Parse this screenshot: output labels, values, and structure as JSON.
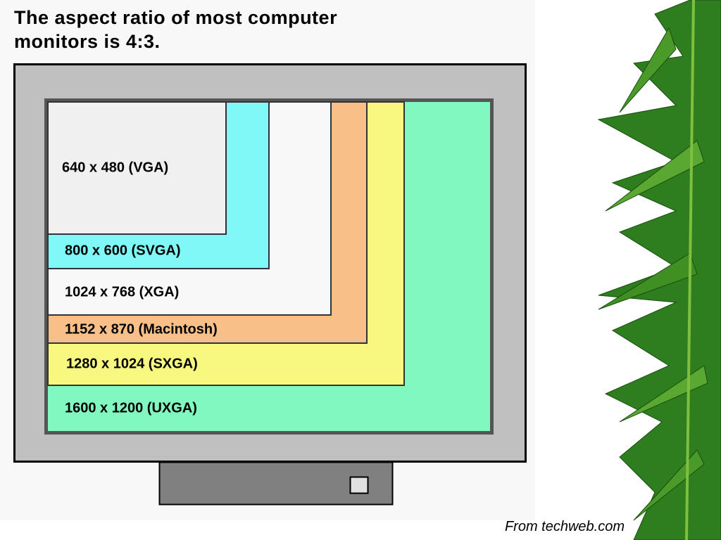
{
  "title": "The aspect ratio of most computer monitors is 4:3.",
  "resolutions": [
    "640 x 480 (VGA)",
    "800 x 600 (SVGA)",
    "1024 x 768 (XGA)",
    "1152 x 870 (Macintosh)",
    "1280 x 1024 (SXGA)",
    "1600 x 1200 (UXGA)"
  ],
  "source": "From techweb.com"
}
